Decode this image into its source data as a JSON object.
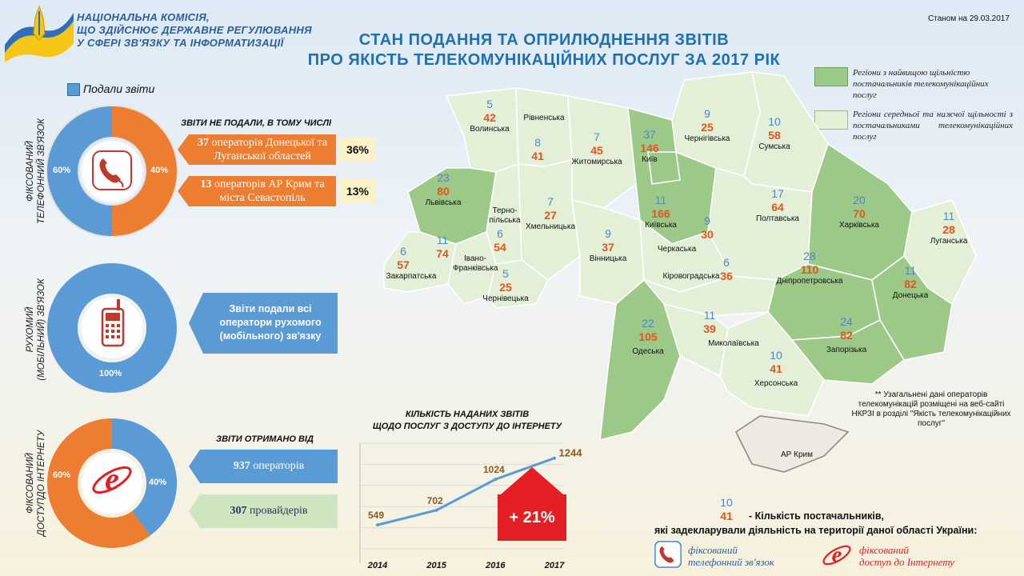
{
  "header": {
    "org_lines": [
      "НАЦІОНАЛЬНА КОМІСІЯ,",
      "ЩО ЗДІЙСНЮЄ ДЕРЖАВНЕ РЕГУЛЮВАННЯ",
      "У СФЕРІ ЗВ'ЯЗКУ ТА ІНФОРМАТИЗАЦІЇ"
    ],
    "title_line1": "СТАН ПОДАННЯ ТА ОПРИЛЮДНЕННЯ ЗВІТІВ",
    "title_line2": "ПРО ЯКІСТЬ ТЕЛЕКОМУНІКАЦІЙНИХ ПОСЛУГ ЗА 2017 РІК",
    "date": "Станом на 29.03.2017"
  },
  "legend_top": {
    "label": "Подали звіти",
    "color": "#5b9bd5"
  },
  "fixed_phone": {
    "side_label_1": "ФІКСОВАНИЙ",
    "side_label_2": "ТЕЛЕФОННИЙ ЗВ'ЯЗОК",
    "submitted_pct": "60%",
    "not_submitted_pct": "40%",
    "submitted_fraction": 0.6,
    "subtitle": "ЗВІТИ НЕ ПОДАЛИ, В ТОМУ ЧИСЛІ",
    "items": [
      {
        "count": "37",
        "text": "операторів Донецької та Луганської областей",
        "pct": "36%"
      },
      {
        "count": "13",
        "text": "операторів АР Крим та міста Севастопіль",
        "pct": "13%"
      }
    ]
  },
  "mobile": {
    "side_label_1": "РУХОМИЙ",
    "side_label_2": "(МОБІЛЬНИЙ) ЗВ'ЯЗОК",
    "pct": "100%",
    "callout": "Звіти подали всі оператори рухомого (мобільного) зв'язку"
  },
  "internet": {
    "side_label_1": "ФІКСОВАНИЙ",
    "side_label_2": "ДОСТУПДО ІНТЕРНЕТУ",
    "orange_pct": "60%",
    "blue_pct": "40%",
    "subtitle": "ЗВІТИ ОТРИМАНО ВІД",
    "operators_count": "937",
    "operators_text": "операторів",
    "providers_count": "307",
    "providers_text": "провайдерів"
  },
  "chart_data": {
    "type": "line",
    "title_line1": "КІЛЬКІСТЬ НАДАНИХ ЗВІТІВ",
    "title_line2": "ЩОДО ПОСЛУГ З ДОСТУПУ ДО ІНТЕРНЕТУ",
    "categories": [
      "2014",
      "2015",
      "2016",
      "2017"
    ],
    "values": [
      549,
      702,
      1024,
      1244
    ],
    "value_labels": [
      "549",
      "702",
      "1024",
      "1244"
    ],
    "ylim": [
      300,
      1400
    ],
    "grid": true,
    "growth": "+ 21%"
  },
  "map_legend": {
    "dark_label": "Регіони з найвищою щільністю постачальників телекомунікаційних послуг",
    "light_label": "Регіони середньої та нижчої щільності з постачальниками телекомунікаційних послуг",
    "dark_color": "#9cc987",
    "light_color": "#e4efd7"
  },
  "regions": [
    {
      "name": "Волинська",
      "tel": "5",
      "inet": "42"
    },
    {
      "name": "Рівненська",
      "tel": "",
      "inet": ""
    },
    {
      "name": "Житомирська",
      "tel": "7",
      "inet": "45"
    },
    {
      "name": "Київ",
      "tel": "37",
      "inet": "146"
    },
    {
      "name": "Чернігівська",
      "tel": "9",
      "inet": "25"
    },
    {
      "name": "Сумська",
      "tel": "10",
      "inet": "58"
    },
    {
      "name": "Львівська",
      "tel": "23",
      "inet": "80"
    },
    {
      "name": "",
      "tel": "8",
      "inet": "41"
    },
    {
      "name": "Київська",
      "tel": "11",
      "inet": "166"
    },
    {
      "name": "Полтавська",
      "tel": "17",
      "inet": "64"
    },
    {
      "name": "Харківська",
      "tel": "20",
      "inet": "70"
    },
    {
      "name": "Луганська",
      "tel": "11",
      "inet": "28"
    },
    {
      "name": "Терно-пільська",
      "tel": "",
      "inet": ""
    },
    {
      "name": "Хмельницька",
      "tel": "7",
      "inet": "27"
    },
    {
      "name": "Вінницька",
      "tel": "9",
      "inet": "37"
    },
    {
      "name": "Черкаська",
      "tel": "9",
      "inet": "30"
    },
    {
      "name": "Закарпатська",
      "tel": "6",
      "inet": "57"
    },
    {
      "name": "Івано-Франківська",
      "tel": "11",
      "inet": "74"
    },
    {
      "name": "",
      "tel": "6",
      "inet": "54"
    },
    {
      "name": "Чернівецька",
      "tel": "5",
      "inet": "25"
    },
    {
      "name": "Кіровоградська",
      "tel": "6",
      "inet": "36"
    },
    {
      "name": "Дніпропетровська",
      "tel": "28",
      "inet": "110"
    },
    {
      "name": "Донецька",
      "tel": "11",
      "inet": "82"
    },
    {
      "name": "Одеська",
      "tel": "22",
      "inet": "105"
    },
    {
      "name": "Миколаївська",
      "tel": "11",
      "inet": "39"
    },
    {
      "name": "Запорізька",
      "tel": "24",
      "inet": "82"
    },
    {
      "name": "Херсонська",
      "tel": "10",
      "inet": "41"
    },
    {
      "name": "АР Крим",
      "tel": "",
      "inet": ""
    }
  ],
  "footnote": "** Узагальнені дані операторів телекомунікацій розміщені на веб-сайті НКРЗІ в розділі \"Якість телекомунікаційних послуг\"",
  "bottom_legend": {
    "example_tel": "10",
    "example_inet": "41",
    "line1": "- Кількість постачальників,",
    "line2": "які задекларували діяльність на території даної області України:",
    "fixed_tel_1": "фіксований",
    "fixed_tel_2": "телефонний зв'язок",
    "fixed_inet_1": "фіксований",
    "fixed_inet_2": "доступ до Інтернету"
  }
}
